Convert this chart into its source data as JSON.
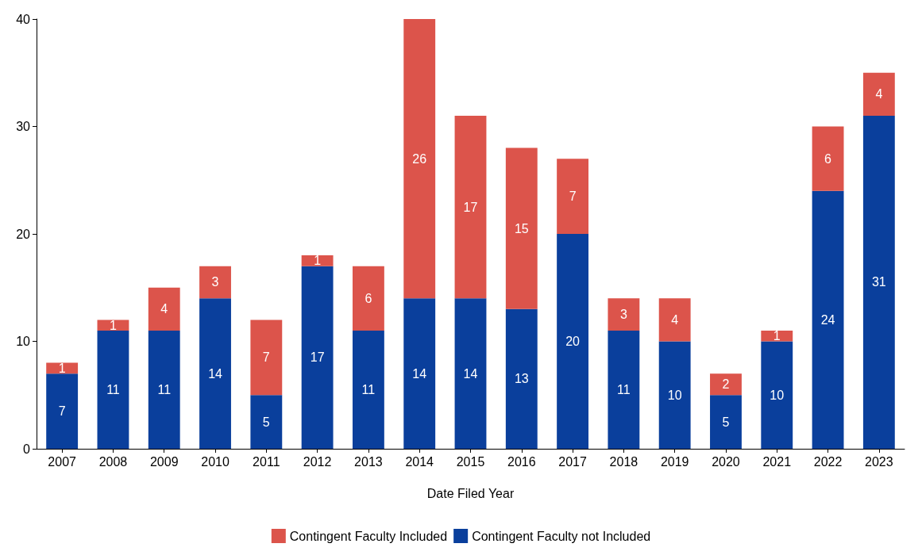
{
  "chart_data": {
    "type": "bar",
    "stacked": true,
    "xlabel": "Date Filed Year",
    "categories": [
      "2007",
      "2008",
      "2009",
      "2010",
      "2011",
      "2012",
      "2013",
      "2014",
      "2015",
      "2016",
      "2017",
      "2018",
      "2019",
      "2020",
      "2021",
      "2022",
      "2023"
    ],
    "series": [
      {
        "name": "Contingent Faculty not Included",
        "color": "#0a3f9c",
        "values": [
          7,
          11,
          11,
          14,
          5,
          17,
          11,
          14,
          14,
          13,
          20,
          11,
          10,
          5,
          10,
          24,
          31
        ]
      },
      {
        "name": "Contingent Faculty Included",
        "color": "#dc544b",
        "values": [
          1,
          1,
          4,
          3,
          7,
          1,
          6,
          26,
          17,
          15,
          7,
          3,
          4,
          2,
          1,
          6,
          4
        ]
      }
    ],
    "ylim": [
      0,
      40
    ],
    "yticks": [
      0,
      10,
      20,
      30,
      40
    ],
    "grid": false,
    "legend": "bottom",
    "data_labels": true
  }
}
